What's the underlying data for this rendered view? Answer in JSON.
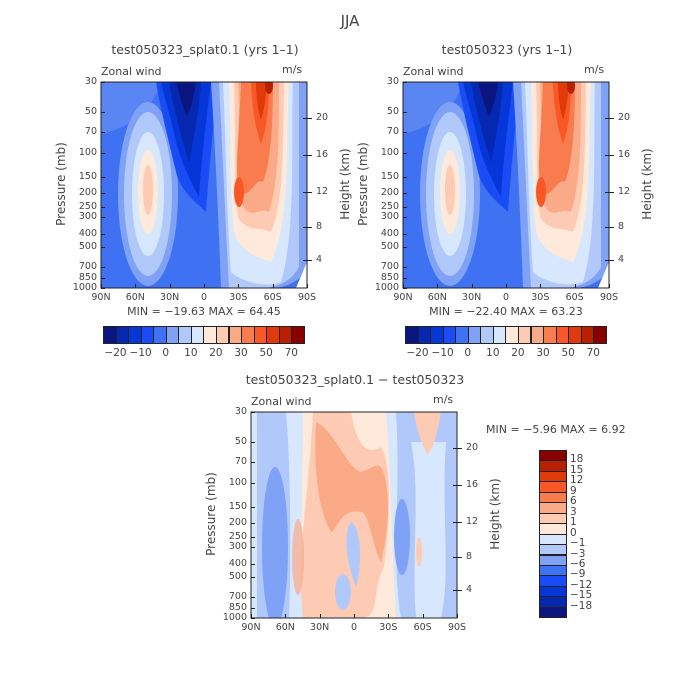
{
  "title": "JJA",
  "colors": {
    "scale16": [
      "#0a1580",
      "#0628b0",
      "#0536d8",
      "#1a4cf5",
      "#3f72f2",
      "#7fa2f6",
      "#b1c9fa",
      "#d7e7fd",
      "#fee9da",
      "#fdcbb3",
      "#fbaa88",
      "#f97c4f",
      "#f85826",
      "#e0390a",
      "#b72000",
      "#880000"
    ]
  },
  "panels": [
    {
      "title": "test050323_splat0.1 (yrs 1–1)",
      "variable": "Zonal wind",
      "units": "m/s",
      "min_max": "MIN = −19.63   MAX =   64.45"
    },
    {
      "title": "test050323 (yrs 1–1)",
      "variable": "Zonal wind",
      "units": "m/s",
      "min_max": "MIN = −22.40   MAX =   63.23"
    },
    {
      "title": "test050323_splat0.1 − test050323",
      "variable": "Zonal wind",
      "units": "m/s",
      "min_max": "MIN =   −5.96   MAX =   6.92"
    }
  ],
  "chart_data": [
    {
      "type": "contour",
      "title": "test050323_splat0.1 (yrs 1–1)",
      "xlabel": "",
      "ylabel": "Pressure (mb)",
      "ylabel_right": "Height (km)",
      "x_ticks": [
        "90N",
        "60N",
        "30N",
        "0",
        "30S",
        "60S",
        "90S"
      ],
      "y_ticks": [
        "30",
        "50",
        "70",
        "100",
        "150",
        "200",
        "250",
        "300",
        "400",
        "500",
        "700",
        "850",
        "1000"
      ],
      "y_scale": "log",
      "ylim": [
        1000,
        30
      ],
      "y_right_ticks": [
        "4",
        "8",
        "12",
        "16",
        "20"
      ],
      "min": -19.63,
      "max": 64.45,
      "colorbar_labels": [
        "−20",
        "−10",
        "0",
        "10",
        "20",
        "30",
        "50",
        "70"
      ],
      "colorbar_orientation": "horizontal"
    },
    {
      "type": "contour",
      "title": "test050323 (yrs 1–1)",
      "xlabel": "",
      "ylabel": "Pressure (mb)",
      "ylabel_right": "Height (km)",
      "x_ticks": [
        "90N",
        "60N",
        "30N",
        "0",
        "30S",
        "60S",
        "90S"
      ],
      "y_ticks": [
        "30",
        "50",
        "70",
        "100",
        "150",
        "200",
        "250",
        "300",
        "400",
        "500",
        "700",
        "850",
        "1000"
      ],
      "y_scale": "log",
      "ylim": [
        1000,
        30
      ],
      "y_right_ticks": [
        "4",
        "8",
        "12",
        "16",
        "20"
      ],
      "min": -22.4,
      "max": 63.23,
      "colorbar_labels": [
        "−20",
        "−10",
        "0",
        "10",
        "20",
        "30",
        "50",
        "70"
      ],
      "colorbar_orientation": "horizontal"
    },
    {
      "type": "contour",
      "title": "test050323_splat0.1 − test050323",
      "xlabel": "",
      "ylabel": "Pressure (mb)",
      "ylabel_right": "Height (km)",
      "x_ticks": [
        "90N",
        "60N",
        "30N",
        "0",
        "30S",
        "60S",
        "90S"
      ],
      "y_ticks": [
        "30",
        "50",
        "70",
        "100",
        "150",
        "200",
        "250",
        "300",
        "400",
        "500",
        "700",
        "850",
        "1000"
      ],
      "y_scale": "log",
      "ylim": [
        1000,
        30
      ],
      "y_right_ticks": [
        "4",
        "8",
        "12",
        "16",
        "20"
      ],
      "min": -5.96,
      "max": 6.92,
      "colorbar_labels": [
        "18",
        "15",
        "12",
        "9",
        "6",
        "3",
        "1",
        "0",
        "−1",
        "−3",
        "−6",
        "−9",
        "−12",
        "−15",
        "−18"
      ],
      "colorbar_orientation": "vertical"
    }
  ]
}
